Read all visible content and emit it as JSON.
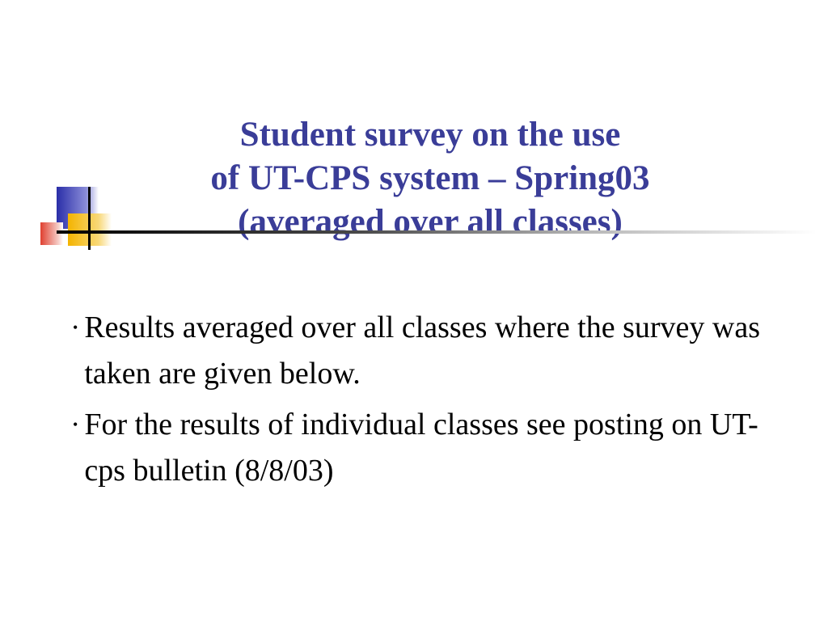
{
  "title": {
    "line1": "Student survey on the use",
    "line2": "of UT-CPS system – Spring03",
    "line3": "(averaged over all classes)",
    "color": "#3a3d98",
    "fontsize": 43,
    "fontweight": "bold"
  },
  "decoration": {
    "blue_square_color_start": "#2a2ea8",
    "blue_square_color_end": "#ffffff",
    "red_square_color_start": "#e04030",
    "yellow_square_color_start": "#f4b400",
    "rule_gradient_start": "#000000",
    "rule_gradient_end": "#ffffff",
    "cross_color": "#000000"
  },
  "bullets": [
    {
      "text": "Results averaged over all classes where the survey was taken are given below."
    },
    {
      "text": "For the results of individual classes see posting on UT-cps bulletin (8/8/03)"
    }
  ],
  "body_style": {
    "color": "#000000",
    "fontsize": 38,
    "bullet_char": "•"
  },
  "background_color": "#ffffff"
}
